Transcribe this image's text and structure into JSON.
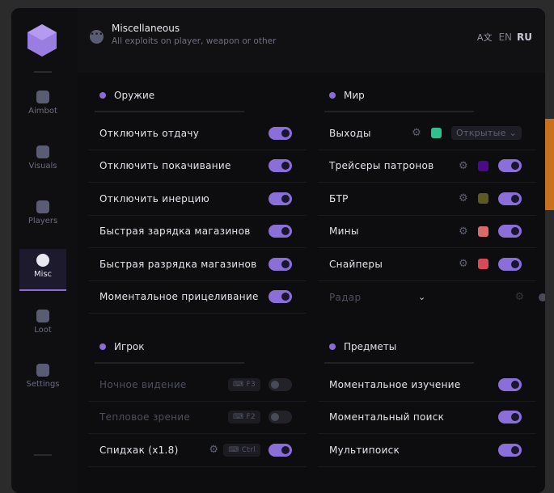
{
  "header": {
    "title": "Miscellaneous",
    "subtitle": "All exploits on player, weapon or other",
    "lang_en": "EN",
    "lang_ru": "RU",
    "translate_icon": "A文"
  },
  "sidebar": {
    "items": [
      {
        "label": "Aimbot",
        "icon": "alien-icon"
      },
      {
        "label": "Visuals",
        "icon": "vr-goggles-icon"
      },
      {
        "label": "Players",
        "icon": "users-icon"
      },
      {
        "label": "Misc",
        "icon": "dots-icon",
        "active": true
      },
      {
        "label": "Loot",
        "icon": "briefcase-icon"
      },
      {
        "label": "Settings",
        "icon": "list-icon"
      }
    ]
  },
  "weapon": {
    "title": "Оружие",
    "items": [
      {
        "label": "Отключить отдачу",
        "on": true
      },
      {
        "label": "Отключить покачивание",
        "on": true
      },
      {
        "label": "Отключить инерцию",
        "on": true
      },
      {
        "label": "Быстрая зарядка магазинов",
        "on": true
      },
      {
        "label": "Быстрая разрядка магазинов",
        "on": true
      },
      {
        "label": "Моментальное прицеливание",
        "on": true
      }
    ]
  },
  "world": {
    "title": "Мир",
    "exits": {
      "label": "Выходы",
      "color": "#2fc08e",
      "select": "Открытые"
    },
    "items": [
      {
        "label": "Трейсеры патронов",
        "color": "#4a0a8a",
        "on": true
      },
      {
        "label": "БТР",
        "color": "#5c5a22",
        "on": true
      },
      {
        "label": "Мины",
        "color": "#d86a6a",
        "on": true
      },
      {
        "label": "Снайперы",
        "color": "#d84a58",
        "on": true
      }
    ],
    "radar": {
      "label": "Радар",
      "on": false
    }
  },
  "player": {
    "title": "Игрок",
    "items": [
      {
        "label": "Ночное видение",
        "key": "F3",
        "on": false
      },
      {
        "label": "Тепловое зрение",
        "key": "F2",
        "on": false
      },
      {
        "label": "Спидхак (x1.8)",
        "key": "Ctrl",
        "on": true
      }
    ]
  },
  "items": {
    "title": "Предметы",
    "items": [
      {
        "label": "Моментальное изучение",
        "on": true
      },
      {
        "label": "Моментальный поиск",
        "on": true
      },
      {
        "label": "Мультипоиск",
        "on": true
      }
    ]
  },
  "colors": {
    "accent": "#8b6fd8"
  }
}
